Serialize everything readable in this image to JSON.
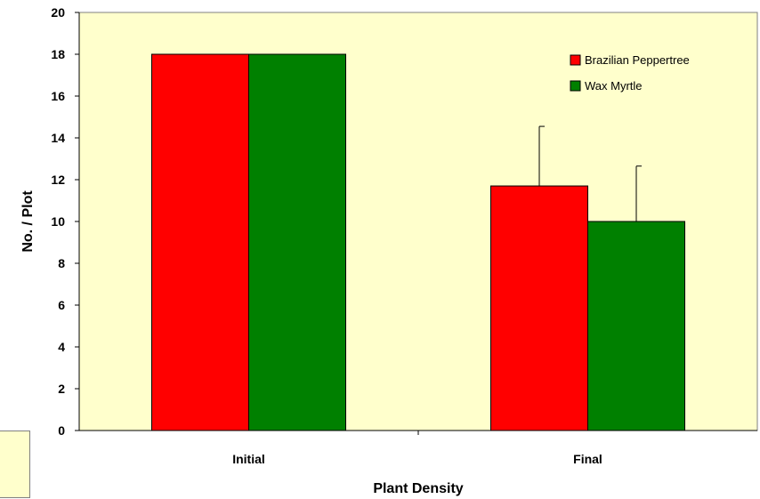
{
  "chart_data": {
    "type": "bar",
    "title": "",
    "xlabel": "Plant Density",
    "ylabel": "No. / Plot",
    "categories": [
      "Initial",
      "Final"
    ],
    "series": [
      {
        "name": "Brazilian Peppertree",
        "color": "#ff0000",
        "values": [
          18,
          11.7
        ],
        "errors": [
          0,
          2.85
        ]
      },
      {
        "name": "Wax Myrtle",
        "color": "#008000",
        "values": [
          18,
          10
        ],
        "errors": [
          0,
          2.65
        ]
      }
    ],
    "ylim": [
      0,
      20
    ],
    "yticks": [
      "0",
      "2",
      "4",
      "6",
      "8",
      "10",
      "12",
      "14",
      "16",
      "18",
      "20"
    ],
    "grid": false,
    "legend_position": "top-right",
    "plot_background": "#ffffcc"
  }
}
